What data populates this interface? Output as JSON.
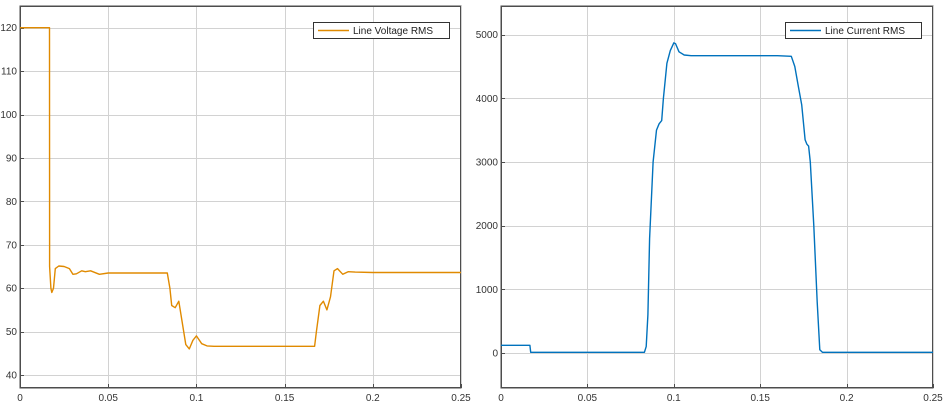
{
  "chart_data": [
    {
      "type": "line",
      "title": "",
      "xlabel": "",
      "ylabel": "",
      "xlim": [
        0,
        0.25
      ],
      "ylim": [
        37,
        125
      ],
      "xticks": [
        0,
        0.05,
        0.1,
        0.15,
        0.2,
        0.25
      ],
      "yticks": [
        40,
        50,
        60,
        70,
        80,
        90,
        100,
        110,
        120
      ],
      "xtick_labels": [
        "0",
        "0.05",
        "0.1",
        "0.15",
        "0.2",
        "0.25"
      ],
      "ytick_labels": [
        "40",
        "50",
        "60",
        "70",
        "80",
        "90",
        "100",
        "110",
        "120"
      ],
      "grid": true,
      "legend_position": "top-right",
      "series": [
        {
          "name": "Line Voltage RMS",
          "color": "#e08a00",
          "x": [
            0,
            0.0167,
            0.0168,
            0.0175,
            0.018,
            0.019,
            0.02,
            0.022,
            0.025,
            0.028,
            0.03,
            0.032,
            0.035,
            0.037,
            0.04,
            0.045,
            0.05,
            0.06,
            0.07,
            0.08,
            0.0835,
            0.085,
            0.086,
            0.088,
            0.09,
            0.092,
            0.094,
            0.096,
            0.098,
            0.1,
            0.103,
            0.106,
            0.11,
            0.12,
            0.13,
            0.14,
            0.15,
            0.16,
            0.167,
            0.168,
            0.17,
            0.172,
            0.174,
            0.176,
            0.178,
            0.18,
            0.183,
            0.186,
            0.19,
            0.2,
            0.21,
            0.22,
            0.23,
            0.24,
            0.25
          ],
          "y": [
            120,
            120,
            65,
            60,
            59,
            60,
            64.5,
            65.1,
            65,
            64.5,
            63.2,
            63.3,
            64,
            63.8,
            64,
            63.2,
            63.5,
            63.5,
            63.5,
            63.5,
            63.5,
            60,
            56,
            55.5,
            57,
            52,
            47,
            46,
            48,
            49,
            47.2,
            46.7,
            46.6,
            46.6,
            46.6,
            46.6,
            46.6,
            46.6,
            46.6,
            50,
            56,
            57,
            55,
            58,
            64,
            64.5,
            63.2,
            63.8,
            63.7,
            63.6,
            63.6,
            63.6,
            63.6,
            63.6,
            63.6
          ]
        }
      ]
    },
    {
      "type": "line",
      "title": "",
      "xlabel": "",
      "ylabel": "",
      "xlim": [
        0,
        0.25
      ],
      "ylim": [
        -550,
        5450
      ],
      "xticks": [
        0,
        0.05,
        0.1,
        0.15,
        0.2,
        0.25
      ],
      "yticks": [
        0,
        1000,
        2000,
        3000,
        4000,
        5000
      ],
      "xtick_labels": [
        "0",
        "0.05",
        "0.1",
        "0.15",
        "0.2",
        "0.25"
      ],
      "ytick_labels": [
        "0",
        "1000",
        "2000",
        "3000",
        "4000",
        "5000"
      ],
      "grid": true,
      "legend_position": "top-right",
      "series": [
        {
          "name": "Line Current RMS",
          "color": "#0072bd",
          "x": [
            0,
            0.0167,
            0.0172,
            0.03,
            0.05,
            0.07,
            0.083,
            0.084,
            0.085,
            0.086,
            0.088,
            0.09,
            0.0915,
            0.093,
            0.094,
            0.096,
            0.098,
            0.1,
            0.101,
            0.103,
            0.106,
            0.11,
            0.12,
            0.13,
            0.14,
            0.15,
            0.16,
            0.168,
            0.17,
            0.172,
            0.174,
            0.176,
            0.177,
            0.178,
            0.179,
            0.181,
            0.183,
            0.1845,
            0.186,
            0.19,
            0.2,
            0.22,
            0.25
          ],
          "y": [
            120,
            120,
            10,
            10,
            10,
            10,
            10,
            100,
            600,
            1800,
            3000,
            3500,
            3600,
            3650,
            4000,
            4550,
            4750,
            4870,
            4860,
            4730,
            4680,
            4670,
            4670,
            4670,
            4670,
            4670,
            4670,
            4660,
            4500,
            4200,
            3900,
            3350,
            3280,
            3250,
            3000,
            2000,
            800,
            50,
            10,
            10,
            10,
            10,
            10
          ]
        }
      ]
    }
  ]
}
